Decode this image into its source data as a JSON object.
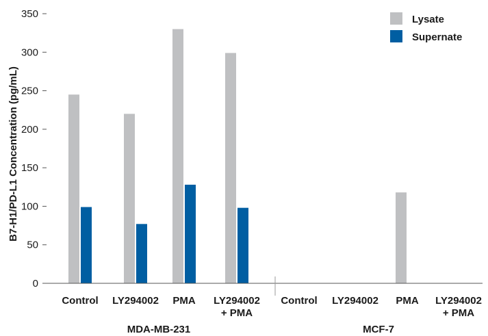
{
  "chart_data": {
    "type": "bar",
    "ylabel": "B7-H1/PD-L1 Concentration (pg/mL)",
    "ylim": [
      0,
      350
    ],
    "yticks": [
      0,
      50,
      100,
      150,
      200,
      250,
      300,
      350
    ],
    "grid": false,
    "legend_position": "top-right",
    "groups": [
      {
        "name": "MDA-MB-231",
        "categories": [
          "Control",
          "LY294002",
          "PMA",
          "LY294002\n+ PMA"
        ]
      },
      {
        "name": "MCF-7",
        "categories": [
          "Control",
          "LY294002",
          "PMA",
          "LY294002\n+ PMA"
        ]
      }
    ],
    "categories": [
      "Control",
      "LY294002",
      "PMA",
      "LY294002\n+ PMA",
      "Control",
      "LY294002",
      "PMA",
      "LY294002\n+ PMA"
    ],
    "series": [
      {
        "name": "Lysate",
        "color": "#bfc0c2",
        "values": [
          245,
          220,
          330,
          299,
          0,
          0,
          118,
          0
        ]
      },
      {
        "name": "Supernate",
        "color": "#005ea2",
        "values": [
          99,
          77,
          128,
          98,
          0,
          0,
          0,
          0
        ]
      }
    ]
  }
}
